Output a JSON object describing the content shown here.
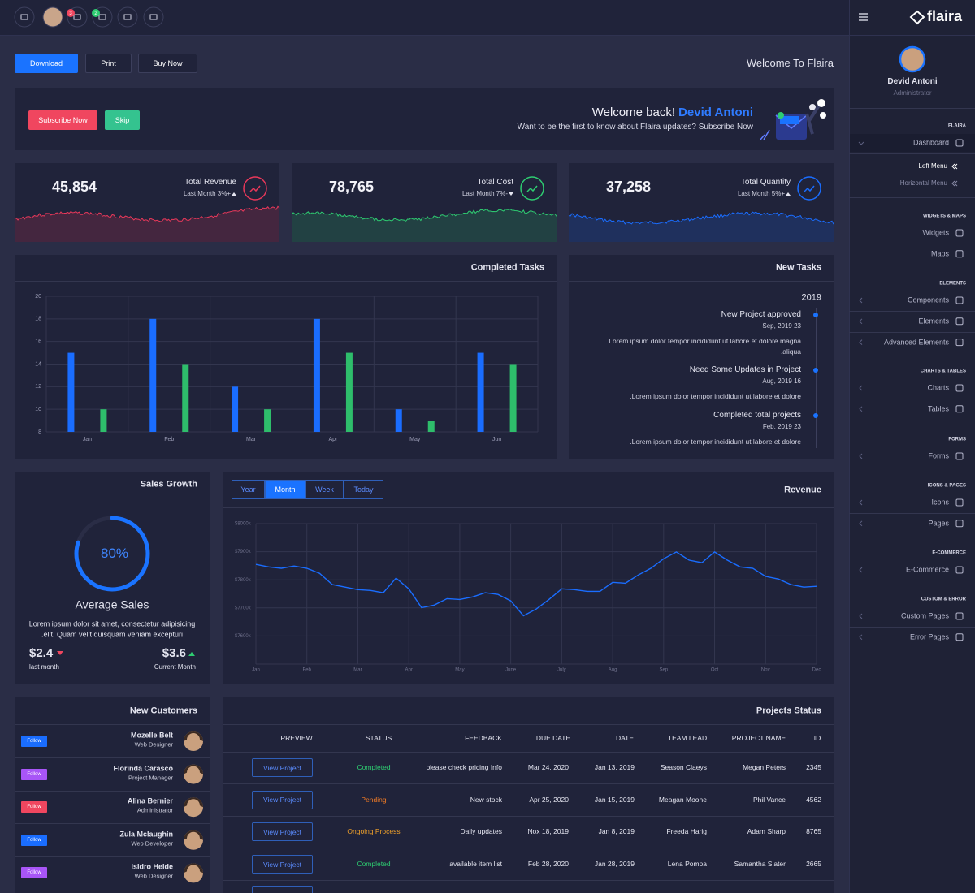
{
  "topbar": {
    "badges": [
      "3",
      "2"
    ]
  },
  "header": {
    "buttons": [
      "Download",
      "Print",
      "Buy Now"
    ],
    "title": "Welcome To Flaira"
  },
  "banner": {
    "buttons": [
      "Subscribe Now",
      "Skip"
    ],
    "greeting": "Welcome back!",
    "name": "Devid Antoni",
    "text": "Want to be the first to know about Flaira updates? Subscribe Now"
  },
  "stats": [
    {
      "value": "45,854",
      "label": "Total Revenue",
      "sub": "Last Month 3%+",
      "color": "#e8385a"
    },
    {
      "value": "78,765",
      "label": "Total Cost",
      "sub": "Last Month 7%-",
      "color": "#2ecc71"
    },
    {
      "value": "37,258",
      "label": "Total Quantity",
      "sub": "Last Month 5%+",
      "color": "#1a6dff"
    }
  ],
  "chart_data": [
    {
      "type": "bar",
      "title": "Completed Tasks",
      "categories": [
        "Jan",
        "Feb",
        "Mar",
        "Apr",
        "May",
        "Jun"
      ],
      "series": [
        {
          "color": "#1a6dff",
          "values": [
            15,
            18,
            12,
            18,
            10,
            15
          ]
        },
        {
          "color": "#2ebd6b",
          "values": [
            10,
            14,
            10,
            15,
            9,
            14
          ]
        }
      ],
      "ylim": [
        8,
        20
      ],
      "yticks": [
        8,
        10,
        12,
        14,
        16,
        18,
        20
      ],
      "grid": true
    },
    {
      "type": "line",
      "title": "Revenue",
      "tabs": [
        "Year",
        "Month",
        "Week",
        "Today"
      ],
      "active_tab": 1,
      "x": [
        0,
        0.25,
        0.5,
        0.75,
        1,
        1.25,
        1.5,
        1.75,
        2,
        2.25,
        2.5,
        2.75,
        3,
        3.25,
        3.5,
        3.75,
        4,
        4.25,
        4.5,
        4.75,
        5,
        5.25,
        5.5,
        5.75,
        6,
        6.25,
        6.5,
        6.75,
        7,
        7.25,
        7.5,
        7.75,
        8,
        8.25,
        8.5,
        8.75,
        9,
        9.25,
        9.5,
        9.75,
        10,
        10.25,
        10.5,
        10.75,
        11
      ],
      "series": [
        {
          "color": "#1a6dff",
          "values": [
            7855,
            7846,
            7841,
            7849,
            7841,
            7823,
            7783,
            7774,
            7765,
            7762,
            7754,
            7806,
            7768,
            7701,
            7710,
            7733,
            7730,
            7739,
            7754,
            7748,
            7725,
            7672,
            7696,
            7730,
            7768,
            7765,
            7759,
            7759,
            7791,
            7788,
            7817,
            7841,
            7875,
            7899,
            7870,
            7861,
            7899,
            7870,
            7846,
            7841,
            7812,
            7803,
            7783,
            7774,
            7777
          ]
        }
      ],
      "xlim": [
        0,
        11
      ],
      "xticks": [
        {
          "value": 0,
          "label": "Jan"
        },
        {
          "value": 1,
          "label": "Feb"
        },
        {
          "value": 2,
          "label": "Mar"
        },
        {
          "value": 3,
          "label": "Apr"
        },
        {
          "value": 4,
          "label": "May"
        },
        {
          "value": 5,
          "label": "June"
        },
        {
          "value": 6,
          "label": "July"
        },
        {
          "value": 7,
          "label": "Aug"
        },
        {
          "value": 8,
          "label": "Sep"
        },
        {
          "value": 9,
          "label": "Oct"
        },
        {
          "value": 10,
          "label": "Nov"
        },
        {
          "value": 11,
          "label": "Dec"
        }
      ],
      "ylim": [
        7500,
        8000
      ],
      "yticks": [
        {
          "value": 7600,
          "label": "$7600k"
        },
        {
          "value": 7700,
          "label": "$7700k"
        },
        {
          "value": 7800,
          "label": "$7800k"
        },
        {
          "value": 7900,
          "label": "$7900k"
        },
        {
          "value": 8000,
          "label": "$8000k"
        }
      ],
      "grid": true
    }
  ],
  "new_tasks": {
    "title": "New Tasks",
    "year": "2019",
    "items": [
      {
        "title": "New Project approved",
        "date": "Sep, 2019 23",
        "text": [
          "Lorem ipsum dolor tempor incididunt ut labore et dolore magna",
          ".aliqua"
        ]
      },
      {
        "title": "Need Some Updates in Project",
        "date": "Aug, 2019 16",
        "text": [
          ".Lorem ipsum dolor tempor incididunt ut labore et dolore"
        ]
      },
      {
        "title": "Completed total projects",
        "date": "Feb, 2019 23",
        "text": [
          ".Lorem ipsum dolor tempor incididunt ut labore et dolore"
        ]
      }
    ]
  },
  "sales_growth": {
    "title": "Sales Growth",
    "progress": {
      "value": 80,
      "label": "80%"
    },
    "subtitle": "Average Sales",
    "text": [
      "Lorem ipsum dolor sit amet, consectetur adipisicing",
      ".elit. Quam velit quisquam veniam excepturi"
    ],
    "last": {
      "value": "$2.4",
      "label": "last month"
    },
    "current": {
      "value": "$3.6",
      "label": "Current Month"
    }
  },
  "new_customers": {
    "title": "New Customers",
    "rows": [
      {
        "button": "Follow",
        "color": "#1a6dff",
        "name": "Mozelle Belt",
        "role": "Web Designer"
      },
      {
        "button": "Follow",
        "color": "#a855f7",
        "name": "Florinda Carasco",
        "role": "Project Manager"
      },
      {
        "button": "Follow",
        "color": "#f0465f",
        "name": "Alina Bernier",
        "role": "Administrator"
      },
      {
        "button": "Follow",
        "color": "#1a6dff",
        "name": "Zula Mclaughin",
        "role": "Web Developer"
      },
      {
        "button": "Follow",
        "color": "#a855f7",
        "name": "Isidro Heide",
        "role": "Web Designer"
      }
    ]
  },
  "projects_status": {
    "title": "Projects Status",
    "headers": [
      "PREVIEW",
      "STATUS",
      "FEEDBACK",
      "DUE DATE",
      "DATE",
      "TEAM LEAD",
      "PROJECT NAME",
      "ID"
    ],
    "rows": [
      [
        "View Project",
        "Completed",
        "please check pricing Info",
        "Mar 24, 2020",
        "Jan 13, 2019",
        "Season Claeys",
        "Megan Peters",
        "2345"
      ],
      [
        "View Project",
        "Pending",
        "New stock",
        "Apr 25, 2020",
        "Jan 15, 2019",
        "Meagan Moone",
        "Phil Vance",
        "4562"
      ],
      [
        "View Project",
        "Ongoing Process",
        "Daily updates",
        "Nox 18, 2019",
        "Jan 8, 2019",
        "Freeda Harig",
        "Adam Sharp",
        "8765"
      ],
      [
        "View Project",
        "Completed",
        "available item list",
        "Feb 28, 2020",
        "Jan 28, 2019",
        "Lena Pompa",
        "Samantha Slater",
        "2665"
      ]
    ],
    "status_colors": [
      "#2ecc71",
      "#f37c25",
      "#f0a12b",
      "#2ecc71"
    ]
  },
  "sidebar": {
    "brand": "flaira",
    "user": {
      "name": "Devid Antoni",
      "role": "Administrator"
    },
    "submenu": [
      "Left Menu",
      "Horizontal Menu"
    ],
    "sections": [
      {
        "title": "FLAIRA",
        "items": [
          "Dashboard"
        ]
      },
      {
        "title": "WIDGETS & MAPS",
        "items": [
          "Widgets",
          "Maps"
        ]
      },
      {
        "title": "ELEMENTS",
        "items": [
          "Components",
          "Elements",
          "Advanced Elements"
        ]
      },
      {
        "title": "CHARTS & TABLES",
        "items": [
          "Charts",
          "Tables"
        ]
      },
      {
        "title": "FORMS",
        "items": [
          "Forms"
        ]
      },
      {
        "title": "ICONS & PAGES",
        "items": [
          "Icons",
          "Pages"
        ]
      },
      {
        "title": "E-COMMERCE",
        "items": [
          "E-Commerce"
        ]
      },
      {
        "title": "CUSTOM & ERROR",
        "items": [
          "Custom Pages",
          "Error Pages"
        ]
      }
    ]
  }
}
